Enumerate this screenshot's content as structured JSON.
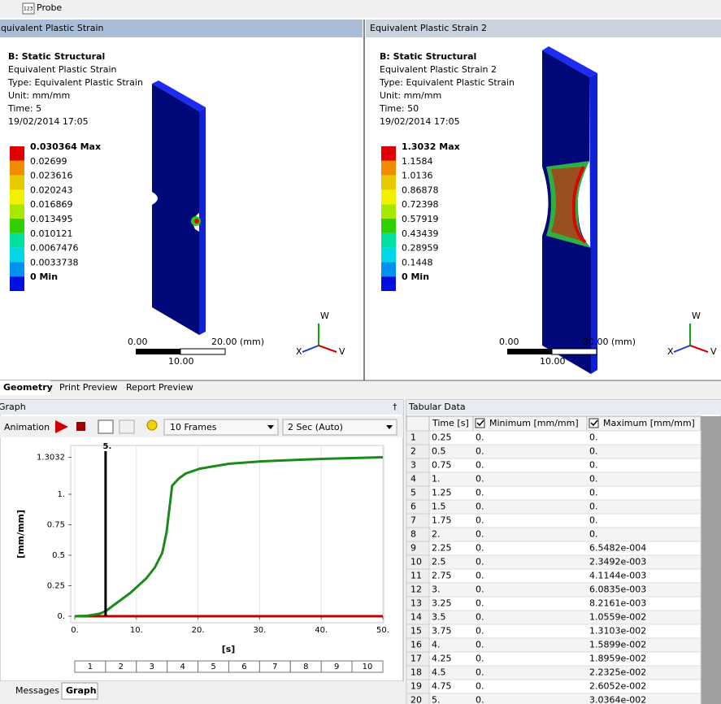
{
  "toolbar": {
    "icon": "123",
    "probe": "Probe"
  },
  "legend_colors": [
    "#e00000",
    "#f08c00",
    "#e8c800",
    "#f0f000",
    "#a8e800",
    "#30d000",
    "#00e0a0",
    "#00d8e8",
    "#0090f0",
    "#0010e0"
  ],
  "viewports": [
    {
      "tab": "Equivalent Plastic Strain",
      "info": [
        "B: Static Structural",
        "Equivalent Plastic Strain",
        "Type: Equivalent Plastic Strain",
        "Unit: mm/mm",
        "Time: 5",
        "19/02/2014 17:05"
      ],
      "legend": [
        "0.030364 Max",
        "0.02699",
        "0.023616",
        "0.020243",
        "0.016869",
        "0.013495",
        "0.010121",
        "0.0067476",
        "0.0033738",
        "0 Min"
      ],
      "scale": {
        "left": "0.00",
        "right": "20.00 (mm)",
        "mid": "10.00"
      },
      "triad": {
        "up": "W",
        "right": "V",
        "left": "X"
      }
    },
    {
      "tab": "Equivalent Plastic Strain 2",
      "info": [
        "B: Static Structural",
        "Equivalent Plastic Strain 2",
        "Type: Equivalent Plastic Strain",
        "Unit: mm/mm",
        "Time: 50",
        "19/02/2014 17:05"
      ],
      "legend": [
        "1.3032 Max",
        "1.1584",
        "1.0136",
        "0.86878",
        "0.72398",
        "0.57919",
        "0.43439",
        "0.28959",
        "0.1448",
        "0 Min"
      ],
      "scale": {
        "left": "0.00",
        "right": "20.00 (mm)",
        "mid": "10.00"
      },
      "triad": {
        "up": "W",
        "right": "V",
        "left": "X"
      }
    }
  ],
  "tabs": [
    "Geometry",
    "Print Preview",
    "Report Preview"
  ],
  "graph": {
    "title": "Graph",
    "animation": "Animation",
    "frames_option": "10 Frames",
    "duration_option": "2 Sec (Auto)",
    "chart": {
      "type": "line",
      "x_label": "[s]",
      "y_label": "[mm/mm]",
      "xlim": [
        0,
        50
      ],
      "ylim": [
        0,
        1.36
      ],
      "xticks": [
        {
          "value": 0,
          "label": "0."
        },
        {
          "value": 10,
          "label": "10."
        },
        {
          "value": 20,
          "label": "20."
        },
        {
          "value": 30,
          "label": "30."
        },
        {
          "value": 40,
          "label": "40."
        },
        {
          "value": 50,
          "label": "50."
        }
      ],
      "yticks": [
        {
          "value": 0,
          "label": "0."
        },
        0.25,
        0.5,
        0.75,
        {
          "value": 1,
          "label": "1."
        },
        1.3032
      ],
      "grid": "x",
      "marker": {
        "value": 5,
        "label": "5."
      },
      "series": [
        {
          "name": "Minimum",
          "color": "#c00000",
          "x": [
            0,
            50
          ],
          "values": [
            0,
            0
          ]
        },
        {
          "name": "Maximum",
          "color": "#1a8a1a",
          "x": [
            0,
            2,
            4,
            5,
            6.3,
            9,
            11.6,
            13,
            14.2,
            14.9,
            15.4,
            15.8,
            16.9,
            18,
            20.3,
            25,
            30.3,
            40,
            50
          ],
          "values": [
            0,
            0.003,
            0.02,
            0.04,
            0.09,
            0.19,
            0.31,
            0.4,
            0.52,
            0.69,
            0.9,
            1.07,
            1.13,
            1.17,
            1.21,
            1.25,
            1.27,
            1.29,
            1.3032
          ]
        }
      ]
    },
    "frames": [
      "1",
      "2",
      "3",
      "4",
      "5",
      "6",
      "7",
      "8",
      "9",
      "10"
    ]
  },
  "tabular": {
    "title": "Tabular Data",
    "columns": [
      "Time [s]",
      "Minimum [mm/mm]",
      "Maximum [mm/mm]"
    ],
    "rows": [
      [
        "1",
        "0.25",
        "0.",
        "0."
      ],
      [
        "2",
        "0.5",
        "0.",
        "0."
      ],
      [
        "3",
        "0.75",
        "0.",
        "0."
      ],
      [
        "4",
        "1.",
        "0.",
        "0."
      ],
      [
        "5",
        "1.25",
        "0.",
        "0."
      ],
      [
        "6",
        "1.5",
        "0.",
        "0."
      ],
      [
        "7",
        "1.75",
        "0.",
        "0."
      ],
      [
        "8",
        "2.",
        "0.",
        "0."
      ],
      [
        "9",
        "2.25",
        "0.",
        "6.5482e-004"
      ],
      [
        "10",
        "2.5",
        "0.",
        "2.3492e-003"
      ],
      [
        "11",
        "2.75",
        "0.",
        "4.1144e-003"
      ],
      [
        "12",
        "3.",
        "0.",
        "6.0835e-003"
      ],
      [
        "13",
        "3.25",
        "0.",
        "8.2161e-003"
      ],
      [
        "14",
        "3.5",
        "0.",
        "1.0559e-002"
      ],
      [
        "15",
        "3.75",
        "0.",
        "1.3103e-002"
      ],
      [
        "16",
        "4.",
        "0.",
        "1.5899e-002"
      ],
      [
        "17",
        "4.25",
        "0.",
        "1.8959e-002"
      ],
      [
        "18",
        "4.5",
        "0.",
        "2.2325e-002"
      ],
      [
        "19",
        "4.75",
        "0.",
        "2.6052e-002"
      ],
      [
        "20",
        "5.",
        "0.",
        "3.0364e-002"
      ]
    ]
  },
  "bottom_tabs": [
    "Messages",
    "Graph"
  ]
}
